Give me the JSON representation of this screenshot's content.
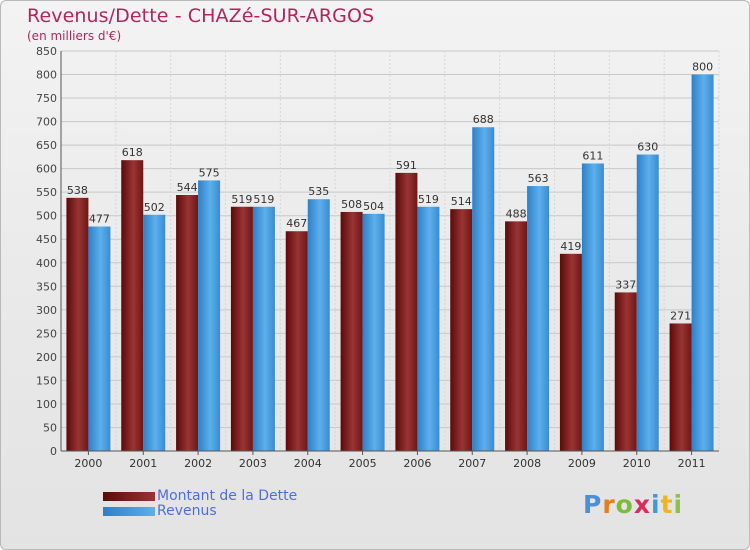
{
  "chart_data": {
    "type": "bar",
    "title": "Revenus/Dette - CHAZé-SUR-ARGOS",
    "subtitle": "(en milliers d'€)",
    "categories": [
      "2000",
      "2001",
      "2002",
      "2003",
      "2004",
      "2005",
      "2006",
      "2007",
      "2008",
      "2009",
      "2010",
      "2011"
    ],
    "series": [
      {
        "name": "Montant de la Dette",
        "values": [
          538,
          618,
          544,
          519,
          467,
          508,
          591,
          514,
          488,
          419,
          337,
          271
        ],
        "color": "#7a1414"
      },
      {
        "name": "Revenus",
        "values": [
          477,
          502,
          575,
          519,
          535,
          504,
          519,
          688,
          563,
          611,
          630,
          800
        ],
        "color": "#4aa0e0"
      }
    ],
    "ylim": [
      0,
      850
    ],
    "yticks": [
      0,
      50,
      100,
      150,
      200,
      250,
      300,
      350,
      400,
      450,
      500,
      550,
      600,
      650,
      700,
      750,
      800,
      850
    ],
    "grid": true,
    "legend_position": "bottom-left"
  },
  "logo": {
    "text": "Proxiti"
  }
}
